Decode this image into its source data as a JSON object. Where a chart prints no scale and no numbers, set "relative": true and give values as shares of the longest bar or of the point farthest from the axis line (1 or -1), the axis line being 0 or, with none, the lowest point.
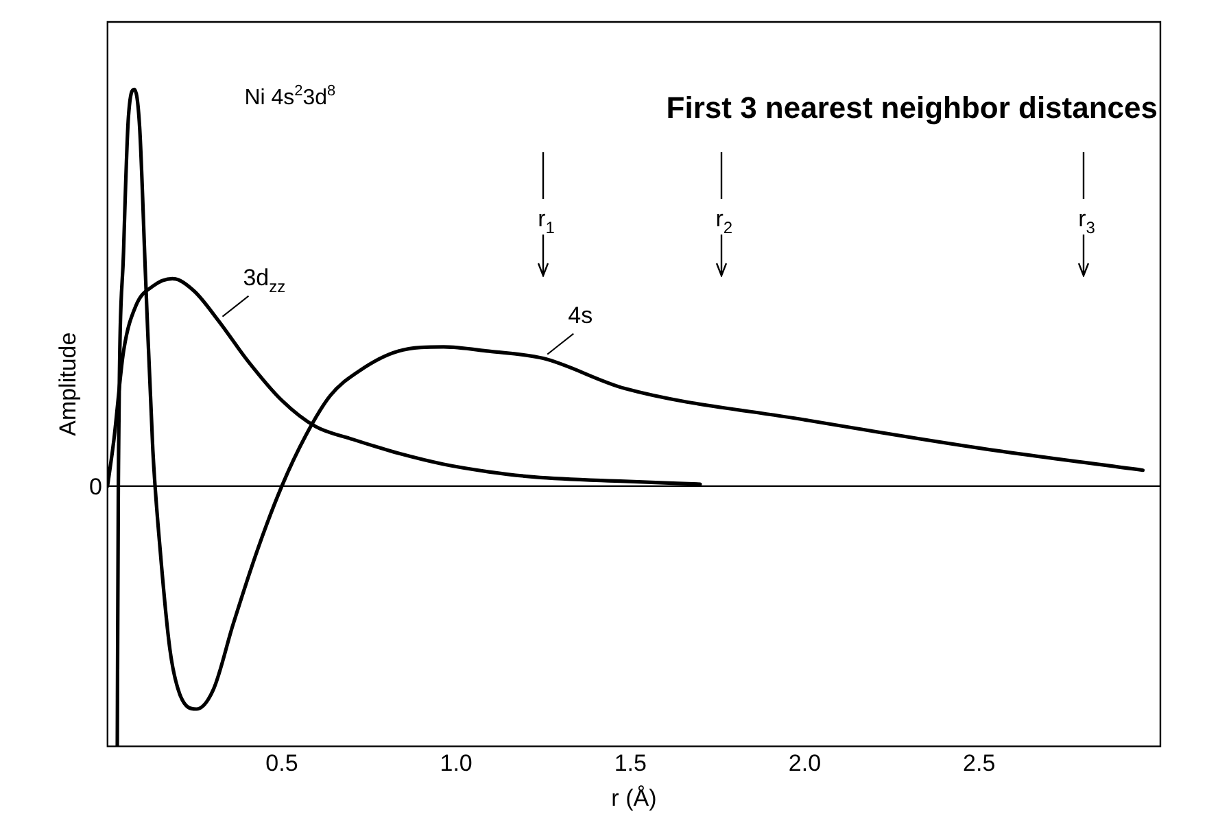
{
  "chart_data": {
    "type": "line",
    "title": "First 3 nearest neighbor distances",
    "xlabel": "r (Å)",
    "ylabel": "Amplitude",
    "relative": true,
    "xlim": [
      0,
      3.02
    ],
    "xticks": [
      0.5,
      {
        "value": 1,
        "label": "1.0"
      },
      1.5,
      {
        "value": 2,
        "label": "2.0"
      },
      2.5
    ],
    "ref_lines": [
      {
        "axis": "y",
        "value": 0,
        "label": "0",
        "color": "#000000"
      },
      {
        "axis": "x",
        "value": 1.25,
        "label": "r$_{1}$",
        "color": "#000000"
      },
      {
        "axis": "x",
        "value": 1.76,
        "label": "r$_{2}$",
        "color": "#000000"
      },
      {
        "axis": "x",
        "value": 2.8,
        "label": "r$_{3}$",
        "color": "#000000"
      }
    ],
    "annotations": [
      "Ni 4s$^{2}$3d$^{8}$"
    ],
    "series": [
      {
        "name": "3d$_{zz}$",
        "color": "#000000",
        "x": [
          0,
          0.018,
          0.046,
          0.081,
          0.13,
          0.186,
          0.248,
          0.318,
          0.402,
          0.5,
          0.597,
          0.703,
          0.768,
          0.833,
          0.964,
          1.094,
          1.224,
          1.484,
          1.7
        ],
        "values": [
          0,
          0.115,
          0.34,
          0.454,
          0.504,
          0.523,
          0.492,
          0.417,
          0.316,
          0.216,
          0.15,
          0.118,
          0.1,
          0.083,
          0.055,
          0.036,
          0.023,
          0.012,
          0.005
        ]
      },
      {
        "name": "4s",
        "color": "#000000",
        "x": [
          0.028,
          0.031,
          0.046,
          0.06,
          0.077,
          0.092,
          0.109,
          0.13,
          0.151,
          0.179,
          0.207,
          0.255,
          0.304,
          0.36,
          0.43,
          0.5,
          0.569,
          0.639,
          0.723,
          0.833,
          0.964,
          1.094,
          1.25,
          1.484,
          2.0,
          2.5,
          2.97
        ],
        "values": [
          -0.656,
          0,
          0.592,
          0.931,
          1,
          0.906,
          0.529,
          0.09,
          -0.161,
          -0.412,
          -0.524,
          -0.562,
          -0.512,
          -0.349,
          -0.161,
          0,
          0.128,
          0.228,
          0.291,
          0.34,
          0.351,
          0.34,
          0.322,
          0.246,
          0.167,
          0.096,
          0.04
        ]
      }
    ]
  }
}
